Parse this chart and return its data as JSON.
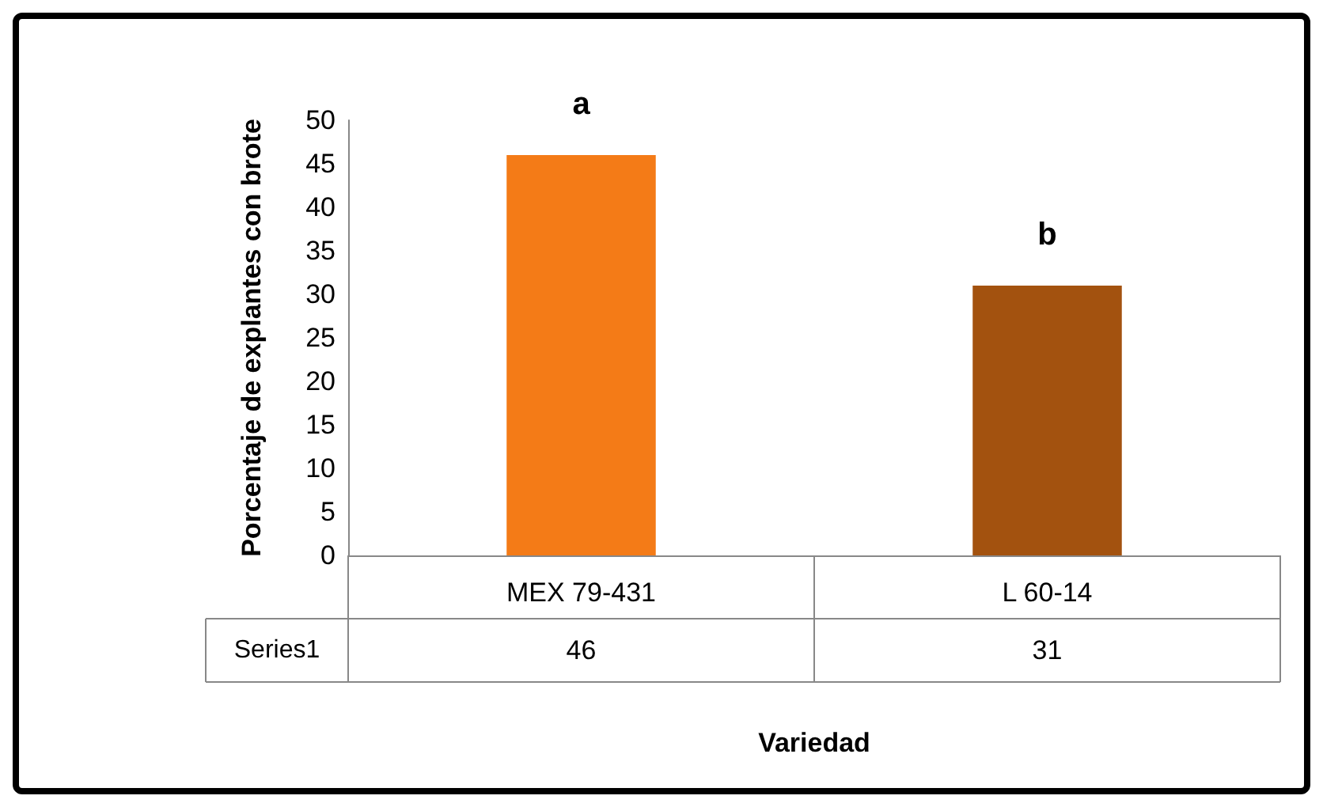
{
  "chart_data": {
    "type": "bar",
    "xlabel": "Variedad",
    "ylabel": "Porcentaje de explantes con brote",
    "categories": [
      "MEX 79-431",
      "L 60-14"
    ],
    "series": [
      {
        "name": "Series1",
        "values": [
          46,
          31
        ],
        "colors": [
          "#f47b17",
          "#a3520f"
        ]
      }
    ],
    "ylim": [
      0,
      50
    ],
    "yticks": [
      0,
      5,
      10,
      15,
      20,
      25,
      30,
      35,
      40,
      45,
      50
    ],
    "data_labels": true,
    "grid": false,
    "legend": false,
    "annotations": [
      {
        "text": "a",
        "x": "MEX 79-431",
        "y": 46
      },
      {
        "text": "b",
        "x": "L 60-14",
        "y": 31
      }
    ]
  }
}
